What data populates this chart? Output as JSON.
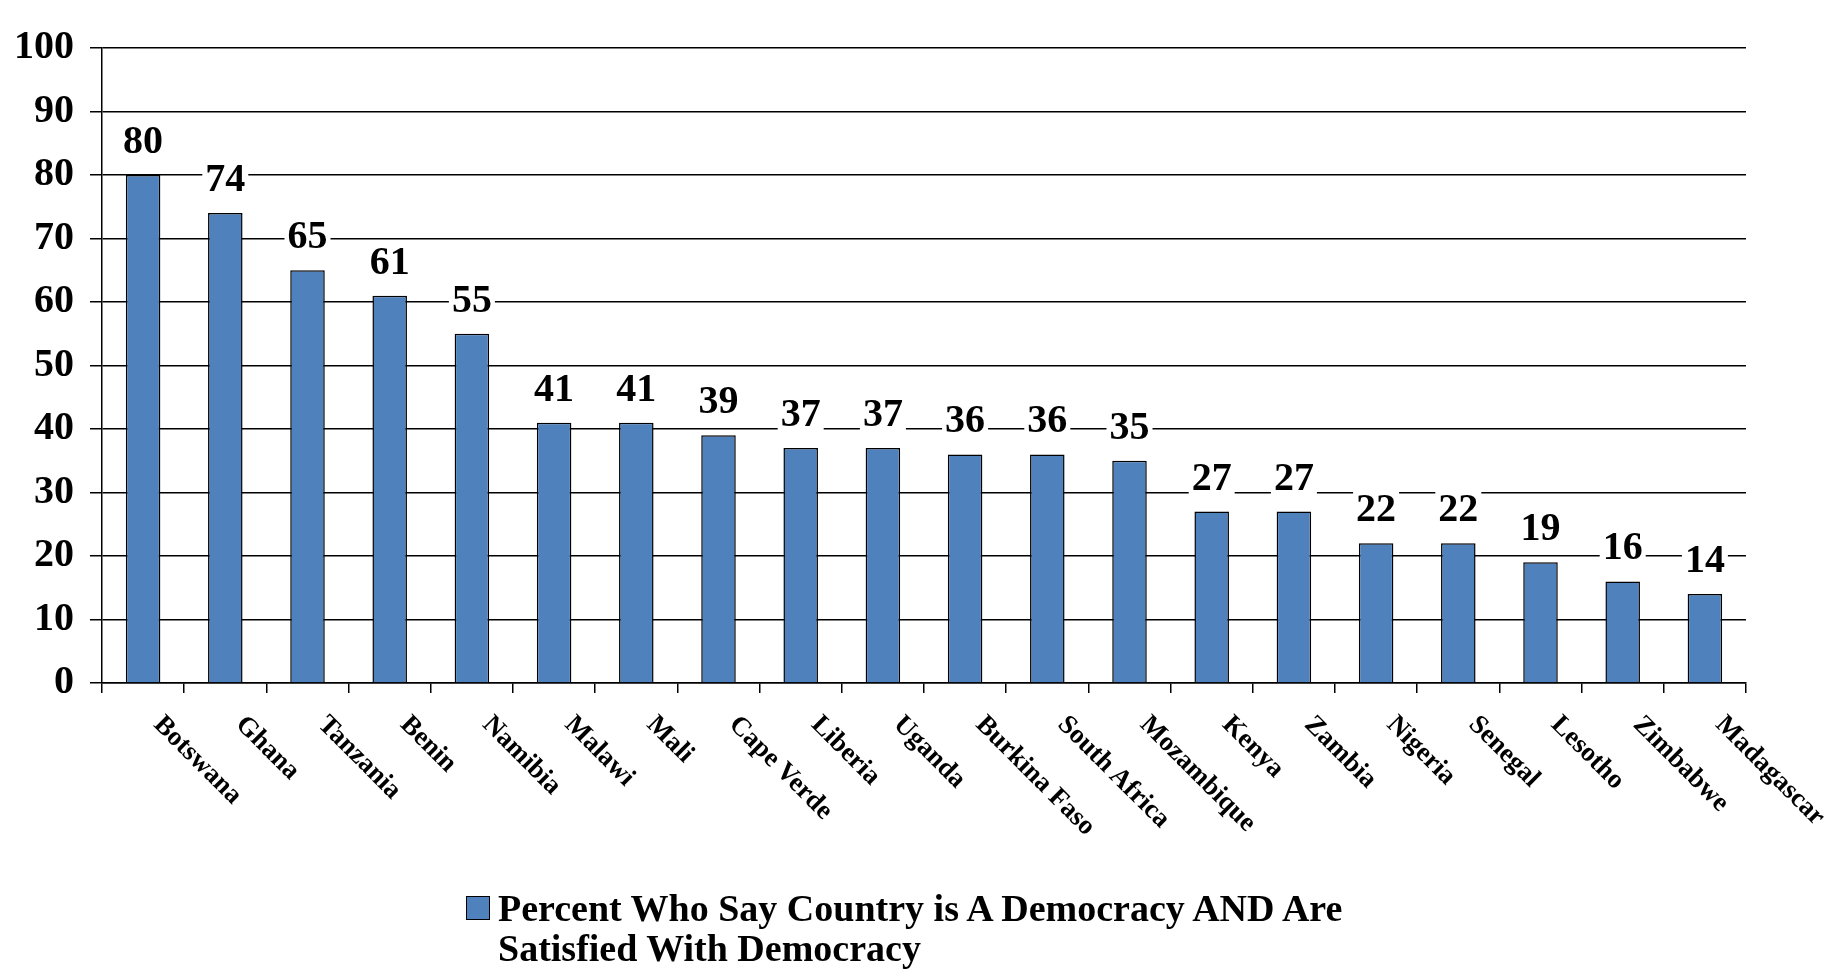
{
  "chart_data": {
    "type": "bar",
    "categories": [
      "Botswana",
      "Ghana",
      "Tanzania",
      "Benin",
      "Namibia",
      "Malawi",
      "Mali",
      "Cape Verde",
      "Liberia",
      "Uganda",
      "Burkina Faso",
      "South Africa",
      "Mozambique",
      "Kenya",
      "Zambia",
      "Nigeria",
      "Senegal",
      "Lesotho",
      "Zimbabwe",
      "Madagascar"
    ],
    "series": [
      {
        "name": "Percent Who Say Country is A Democracy AND Are Satisfied With Democracy",
        "color": "#4f81bd",
        "values": [
          80,
          74,
          65,
          61,
          55,
          41,
          41,
          39,
          37,
          37,
          36,
          36,
          35,
          27,
          27,
          22,
          22,
          19,
          16,
          14
        ]
      }
    ],
    "ylim": [
      0,
      100
    ],
    "yticks": [
      0,
      10,
      20,
      30,
      40,
      50,
      60,
      70,
      80,
      90,
      100
    ],
    "grid": "y",
    "legend": "bottom",
    "data_labels": true
  }
}
